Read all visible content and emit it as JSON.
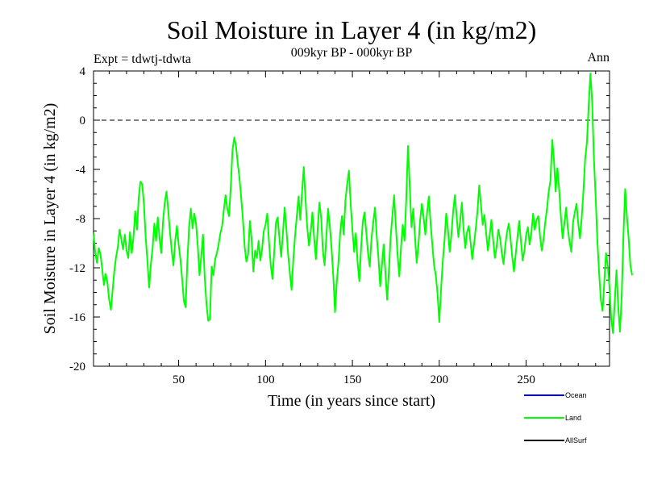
{
  "chart_data": {
    "type": "line",
    "title": "Soil Moisture in Layer 4 (in kg/m2)",
    "subtitle": "009kyr BP - 000kyr BP",
    "left_note": "Expt = tdwtj-tdwta",
    "right_note": "Ann",
    "xlabel": "Time (in years since start)",
    "ylabel": "Soil Moisture in Layer 4 (in kg/m2)",
    "xlim": [
      1,
      298
    ],
    "ylim": [
      -20,
      4
    ],
    "x_ticks": [
      50,
      100,
      150,
      200,
      250
    ],
    "x_tick_labels": [
      "50",
      "100",
      "150",
      "200",
      "250"
    ],
    "y_ticks": [
      4,
      0,
      -4,
      -8,
      -12,
      -16,
      -20
    ],
    "y_tick_labels": [
      "4",
      "0",
      "-4",
      "-8",
      "-12",
      "-16",
      "-20"
    ],
    "reference_line": {
      "y": 0,
      "style": "dashed"
    },
    "legend": [
      {
        "name": "Ocean",
        "color": "#0000ff"
      },
      {
        "name": "Land",
        "color": "#00ff00"
      },
      {
        "name": "AllSurf",
        "color": "#000000"
      }
    ],
    "series": [
      {
        "name": "Land",
        "color": "#00ff00",
        "x_start": 1,
        "x_step": 1,
        "values": [
          -9.2,
          -10.8,
          -11.6,
          -10.4,
          -10.9,
          -12.1,
          -13.4,
          -12.5,
          -13.2,
          -14.6,
          -15.4,
          -13.8,
          -12.2,
          -11.1,
          -10.3,
          -8.9,
          -9.7,
          -10.5,
          -9.3,
          -10.6,
          -11.2,
          -9.1,
          -10.8,
          -9.5,
          -7.4,
          -8.9,
          -6.3,
          -5.0,
          -5.2,
          -6.8,
          -9.5,
          -11.4,
          -13.6,
          -11.7,
          -10.4,
          -8.4,
          -9.8,
          -7.9,
          -9.6,
          -10.8,
          -8.2,
          -6.7,
          -5.8,
          -7.3,
          -9.1,
          -10.6,
          -11.8,
          -9.8,
          -8.6,
          -10.1,
          -11.3,
          -12.9,
          -14.7,
          -15.2,
          -11.5,
          -8.7,
          -7.2,
          -8.8,
          -7.6,
          -8.4,
          -10.2,
          -12.6,
          -11.1,
          -9.3,
          -12.8,
          -14.9,
          -16.3,
          -16.2,
          -11.9,
          -12.6,
          -11.3,
          -10.8,
          -10.1,
          -9.2,
          -8.6,
          -7.3,
          -6.1,
          -7.2,
          -7.8,
          -5.4,
          -2.4,
          -1.4,
          -2.1,
          -3.5,
          -4.7,
          -6.3,
          -8.1,
          -10.3,
          -11.5,
          -10.9,
          -8.2,
          -9.7,
          -12.3,
          -10.6,
          -11.2,
          -9.8,
          -11.4,
          -10.5,
          -9.0,
          -8.5,
          -7.6,
          -9.9,
          -11.8,
          -12.9,
          -10.7,
          -8.3,
          -7.9,
          -9.6,
          -11.1,
          -9.2,
          -7.1,
          -8.8,
          -10.9,
          -12.4,
          -13.8,
          -11.3,
          -9.4,
          -7.8,
          -6.2,
          -8.1,
          -5.9,
          -3.8,
          -6.4,
          -8.7,
          -10.2,
          -9.1,
          -7.5,
          -9.6,
          -11.3,
          -8.9,
          -6.7,
          -7.9,
          -10.6,
          -11.8,
          -9.5,
          -7.2,
          -8.6,
          -10.4,
          -12.7,
          -15.6,
          -13.2,
          -11.5,
          -9.1,
          -7.8,
          -9.3,
          -6.5,
          -5.2,
          -4.1,
          -6.8,
          -8.9,
          -10.7,
          -9.2,
          -11.6,
          -13.1,
          -10.4,
          -8.2,
          -7.5,
          -9.1,
          -10.8,
          -11.9,
          -9.6,
          -8.3,
          -7.1,
          -9.4,
          -11.2,
          -13.5,
          -11.8,
          -10.1,
          -12.4,
          -14.6,
          -12.3,
          -9.5,
          -7.8,
          -6.1,
          -8.6,
          -10.9,
          -12.7,
          -10.3,
          -8.5,
          -9.8,
          -6.4,
          -2.1,
          -5.3,
          -8.7,
          -7.2,
          -9.4,
          -11.6,
          -10.2,
          -8.1,
          -6.8,
          -7.9,
          -9.3,
          -7.5,
          -6.2,
          -8.4,
          -10.1,
          -11.8,
          -12.6,
          -14.1,
          -16.4,
          -13.8,
          -11.5,
          -9.8,
          -7.6,
          -8.9,
          -10.7,
          -9.3,
          -7.4,
          -6.1,
          -7.8,
          -9.5,
          -8.2,
          -6.7,
          -8.9,
          -10.4,
          -9.1,
          -8.6,
          -9.9,
          -11.3,
          -10.1,
          -8.8,
          -7.4,
          -5.3,
          -6.9,
          -8.5,
          -7.7,
          -9.2,
          -10.6,
          -9.4,
          -8.1,
          -9.7,
          -11.2,
          -10.3,
          -8.9,
          -9.6,
          -10.8,
          -11.7,
          -10.2,
          -9.1,
          -8.4,
          -9.6,
          -11.1,
          -12.3,
          -10.9,
          -9.5,
          -8.2,
          -9.8,
          -11.4,
          -10.6,
          -9.3,
          -8.7,
          -10.1,
          -9.2,
          -7.6,
          -8.9,
          -8.1,
          -7.8,
          -9.4,
          -10.6,
          -9.7,
          -8.3,
          -7.2,
          -5.8,
          -4.9,
          -1.6,
          -3.2,
          -5.8,
          -3.9,
          -5.6,
          -7.8,
          -9.6,
          -8.4,
          -7.1,
          -8.8,
          -9.9,
          -10.7,
          -8.3,
          -7.5,
          -6.8,
          -8.4,
          -9.6,
          -7.9,
          -5.7,
          -3.1,
          -1.8,
          1.2,
          3.8,
          1.5,
          -3.1,
          -6.2,
          -9.8,
          -12.4,
          -14.6,
          -15.5,
          -13.1,
          -10.8,
          -11.9,
          -13.6,
          -16.2,
          -17.3,
          -14.8,
          -12.2,
          -15.1,
          -17.2,
          -14.3,
          -9.4,
          -5.6,
          -7.8,
          -9.6,
          -11.8,
          -12.6
        ]
      },
      {
        "name": "Ocean",
        "color": "#0000ff",
        "values": []
      },
      {
        "name": "AllSurf",
        "color": "#000000",
        "values": []
      }
    ]
  }
}
